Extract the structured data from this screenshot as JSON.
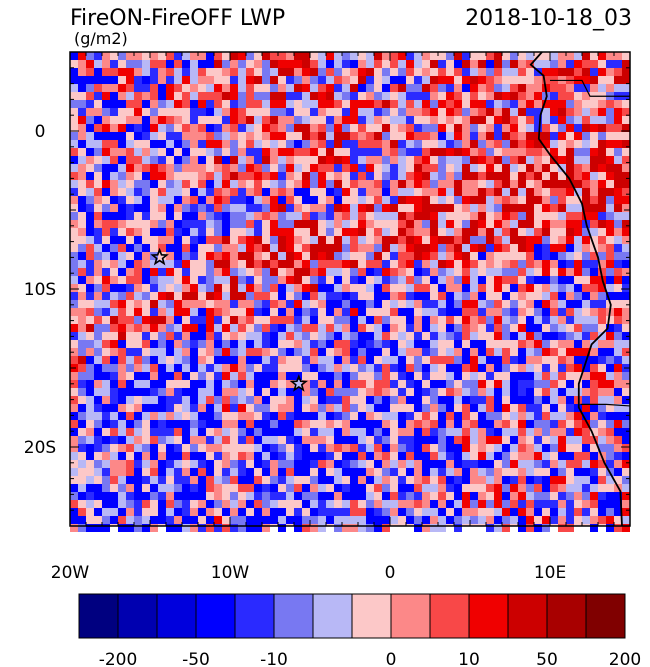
{
  "title": "FireON-FireOFF LWP",
  "date": "2018-10-18_03",
  "units": "(g/m2)",
  "lon_ticks": [
    {
      "lon": -20,
      "label": "20W"
    },
    {
      "lon": -10,
      "label": "10W"
    },
    {
      "lon": 0,
      "label": "0"
    },
    {
      "lon": 10,
      "label": "10E"
    }
  ],
  "lat_ticks": [
    {
      "lat": 0,
      "label": "0"
    },
    {
      "lat": -10,
      "label": "10S"
    },
    {
      "lat": -20,
      "label": "20S"
    }
  ],
  "extent": {
    "lon_min": -20,
    "lon_max": 15,
    "lat_min": -25,
    "lat_max": 5
  },
  "colorbar": {
    "labels": [
      "-200",
      "-50",
      "-10",
      "0",
      "10",
      "50",
      "200"
    ],
    "colors": [
      "#000080",
      "#0000b0",
      "#0000dd",
      "#0000ff",
      "#2a2aff",
      "#7878f2",
      "#b8b8f6",
      "#fcc8c8",
      "#fc8888",
      "#f84848",
      "#f00000",
      "#cc0000",
      "#a80000",
      "#800000"
    ]
  },
  "markers": [
    {
      "name": "star-marker-north",
      "lon": -14.4,
      "lat": -8
    },
    {
      "name": "star-marker-south",
      "lon": -5.7,
      "lat": -16
    }
  ]
}
